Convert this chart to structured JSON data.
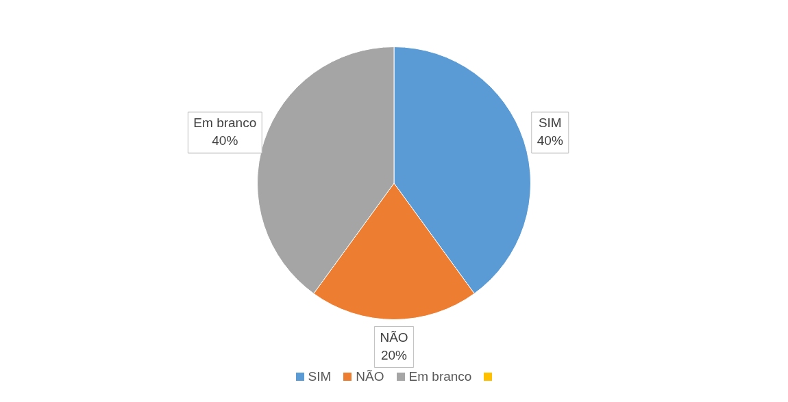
{
  "chart_data": {
    "type": "pie",
    "categories": [
      "SIM",
      "NÃO",
      "Em branco",
      null
    ],
    "values": [
      40,
      20,
      40,
      0
    ],
    "colors": [
      "#5b9bd5",
      "#ed7d31",
      "#a5a5a5",
      "#ffc000"
    ],
    "value_labels": [
      "40%",
      "20%",
      "40%",
      null
    ],
    "legend": "bottom"
  }
}
